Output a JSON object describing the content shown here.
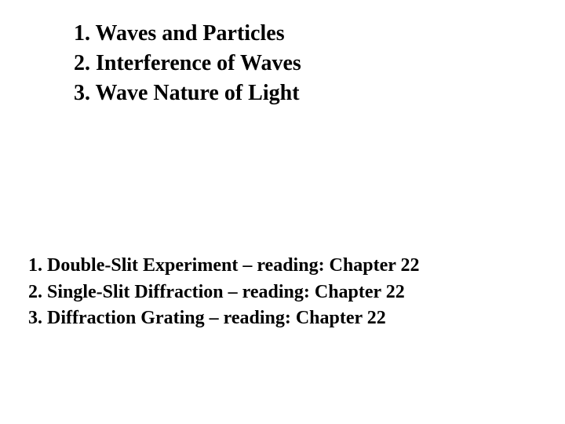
{
  "upper": {
    "items": [
      {
        "text": "1. Waves and Particles"
      },
      {
        "text": "2. Interference of Waves"
      },
      {
        "text": "3. Wave Nature of Light"
      }
    ],
    "fontsize": 28,
    "fontweight": "bold",
    "color": "#000000"
  },
  "lower": {
    "items": [
      {
        "text": "1. Double-Slit Experiment – reading: Chapter 22"
      },
      {
        "text": "2. Single-Slit Diffraction – reading: Chapter 22"
      },
      {
        "text": "3. Diffraction Grating – reading: Chapter 22"
      }
    ],
    "fontsize": 24,
    "fontweight": "bold",
    "color": "#000000"
  },
  "background_color": "#ffffff"
}
